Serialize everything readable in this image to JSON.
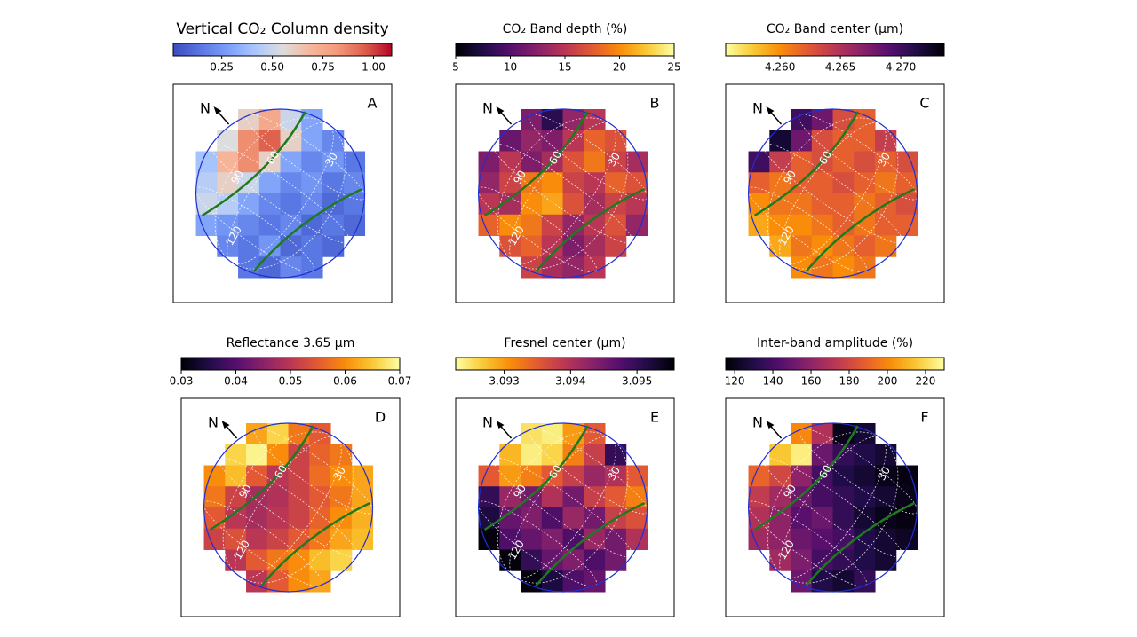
{
  "chart_data": [
    {
      "type": "heatmap",
      "title": "Vertical CO₂ Column density",
      "panel_label": "A",
      "north_label": "N",
      "meridian_labels": [
        "30",
        "60",
        "90",
        "120"
      ],
      "colormap": "coolwarm",
      "clim": [
        0.01,
        1.09
      ],
      "cticks": [
        0.25,
        {
          "value": 0.5,
          "label": "0.50"
        },
        0.75,
        {
          "value": 1,
          "label": "1.00"
        }
      ],
      "values": [
        [
          null,
          null,
          0.6,
          0.75,
          0.5,
          0.3,
          null,
          null
        ],
        [
          null,
          0.55,
          0.85,
          0.95,
          0.6,
          0.3,
          0.2,
          null
        ],
        [
          0.4,
          0.7,
          0.85,
          0.6,
          0.3,
          0.2,
          0.25,
          0.15
        ],
        [
          0.45,
          0.6,
          0.5,
          0.3,
          0.2,
          0.25,
          0.15,
          0.2
        ],
        [
          0.5,
          0.45,
          0.3,
          0.2,
          0.15,
          0.2,
          0.1,
          0.15
        ],
        [
          0.3,
          0.25,
          0.2,
          0.15,
          0.2,
          0.1,
          0.15,
          0.1
        ],
        [
          null,
          0.2,
          0.15,
          0.25,
          0.1,
          0.15,
          0.1,
          null
        ],
        [
          null,
          null,
          0.15,
          0.1,
          0.2,
          0.15,
          null,
          null
        ]
      ]
    },
    {
      "type": "heatmap",
      "title": "CO₂ Band depth (%)",
      "panel_label": "B",
      "north_label": "N",
      "meridian_labels": [
        "30",
        "60",
        "90",
        "120"
      ],
      "colormap": "inferno",
      "clim": [
        5,
        25
      ],
      "cticks": [
        5,
        10,
        15,
        20,
        25
      ],
      "values": [
        [
          null,
          null,
          12,
          8,
          13,
          15,
          null,
          null
        ],
        [
          null,
          11,
          13,
          12,
          15,
          18,
          17,
          null
        ],
        [
          12,
          15,
          12,
          14,
          17,
          19,
          16,
          14
        ],
        [
          13,
          16,
          19,
          20,
          16,
          15,
          18,
          17
        ],
        [
          15,
          14,
          20,
          21,
          17,
          14,
          16,
          15
        ],
        [
          18,
          20,
          19,
          16,
          13,
          15,
          17,
          13
        ],
        [
          null,
          17,
          18,
          15,
          12,
          14,
          16,
          null
        ],
        [
          null,
          null,
          16,
          14,
          13,
          15,
          null,
          null
        ]
      ]
    },
    {
      "type": "heatmap",
      "title": "CO₂ Band center (μm)",
      "panel_label": "C",
      "north_label": "N",
      "meridian_labels": [
        "30",
        "60",
        "90",
        "120"
      ],
      "colormap": "inferno_r",
      "clim": [
        4.2555,
        4.2736
      ],
      "cticks": [
        {
          "value": 4.26,
          "label": "4.260"
        },
        4.265,
        {
          "value": 4.27,
          "label": "4.270"
        }
      ],
      "values": [
        [
          null,
          null,
          4.27,
          4.268,
          4.263,
          4.262,
          null,
          null
        ],
        [
          null,
          4.272,
          4.268,
          4.263,
          4.262,
          4.262,
          4.264,
          null
        ],
        [
          4.27,
          4.264,
          4.262,
          4.263,
          4.262,
          4.263,
          4.262,
          4.263
        ],
        [
          4.262,
          4.261,
          4.262,
          4.262,
          4.263,
          4.262,
          4.261,
          4.262
        ],
        [
          4.26,
          4.261,
          4.261,
          4.262,
          4.262,
          4.261,
          4.262,
          4.263
        ],
        [
          4.259,
          4.26,
          4.26,
          4.261,
          4.262,
          4.261,
          4.262,
          4.262
        ],
        [
          null,
          4.259,
          4.261,
          4.26,
          4.261,
          4.262,
          4.261,
          null
        ],
        [
          null,
          null,
          4.26,
          4.261,
          4.26,
          4.261,
          null,
          null
        ]
      ]
    },
    {
      "type": "heatmap",
      "title": "Reflectance 3.65 μm",
      "panel_label": "D",
      "north_label": "N",
      "meridian_labels": [
        "30",
        "60",
        "90",
        "120"
      ],
      "colormap": "inferno",
      "clim": [
        0.03,
        0.07
      ],
      "cticks": [
        0.03,
        0.04,
        0.05,
        0.06,
        0.07
      ],
      "values": [
        [
          null,
          null,
          0.062,
          0.066,
          0.058,
          0.055,
          null,
          null
        ],
        [
          null,
          0.066,
          0.069,
          0.06,
          0.052,
          0.056,
          0.058,
          null
        ],
        [
          0.06,
          0.064,
          0.055,
          0.05,
          0.052,
          0.057,
          0.06,
          0.062
        ],
        [
          0.058,
          0.052,
          0.048,
          0.049,
          0.052,
          0.055,
          0.058,
          0.062
        ],
        [
          0.055,
          0.05,
          0.048,
          0.05,
          0.052,
          0.056,
          0.06,
          0.063
        ],
        [
          0.052,
          0.054,
          0.05,
          0.052,
          0.055,
          0.058,
          0.062,
          0.064
        ],
        [
          null,
          0.05,
          0.055,
          0.058,
          0.06,
          0.064,
          0.066,
          null
        ],
        [
          null,
          null,
          0.05,
          0.055,
          0.06,
          0.062,
          null,
          null
        ]
      ]
    },
    {
      "type": "heatmap",
      "title": "Fresnel center (μm)",
      "panel_label": "E",
      "north_label": "N",
      "meridian_labels": [
        "30",
        "60",
        "90",
        "120"
      ],
      "colormap": "inferno_r",
      "clim": [
        3.09227,
        3.09556
      ],
      "cticks": [
        3.093,
        3.094,
        3.095
      ],
      "values": [
        [
          null,
          null,
          3.0925,
          3.0924,
          3.093,
          3.0935,
          null,
          null
        ],
        [
          null,
          3.0928,
          3.0924,
          3.0926,
          3.0932,
          3.0938,
          3.095,
          null
        ],
        [
          3.0935,
          3.093,
          3.0932,
          3.0935,
          3.0938,
          3.0942,
          3.094,
          3.0935
        ],
        [
          3.095,
          3.0942,
          3.0945,
          3.094,
          3.0945,
          3.0938,
          3.0935,
          3.0932
        ],
        [
          3.0952,
          3.0946,
          3.0944,
          3.0948,
          3.0942,
          3.0945,
          3.0938,
          3.0936
        ],
        [
          3.0955,
          3.0948,
          3.0946,
          3.0944,
          3.0948,
          3.0942,
          3.0945,
          3.094
        ],
        [
          null,
          3.0955,
          3.095,
          3.0946,
          3.0944,
          3.0948,
          3.0945,
          null
        ],
        [
          null,
          null,
          3.0955,
          3.0952,
          3.0948,
          3.0946,
          null,
          null
        ]
      ]
    },
    {
      "type": "heatmap",
      "title": "Inter-band amplitude (%)",
      "panel_label": "F",
      "north_label": "N",
      "meridian_labels": [
        "30",
        "60",
        "90",
        "120"
      ],
      "colormap": "inferno",
      "clim": [
        115.3,
        229.8
      ],
      "cticks": [
        120,
        140,
        160,
        180,
        200,
        220
      ],
      "values": [
        [
          null,
          null,
          200,
          170,
          120,
          125,
          null,
          null
        ],
        [
          null,
          215,
          225,
          150,
          135,
          130,
          125,
          null
        ],
        [
          190,
          180,
          160,
          140,
          130,
          125,
          120,
          118
        ],
        [
          175,
          165,
          150,
          140,
          135,
          130,
          125,
          120
        ],
        [
          170,
          160,
          145,
          150,
          135,
          125,
          120,
          118
        ],
        [
          165,
          160,
          150,
          145,
          140,
          130,
          125,
          122
        ],
        [
          null,
          165,
          155,
          140,
          135,
          130,
          125,
          null
        ],
        [
          null,
          null,
          150,
          130,
          125,
          135,
          null,
          null
        ]
      ]
    }
  ]
}
